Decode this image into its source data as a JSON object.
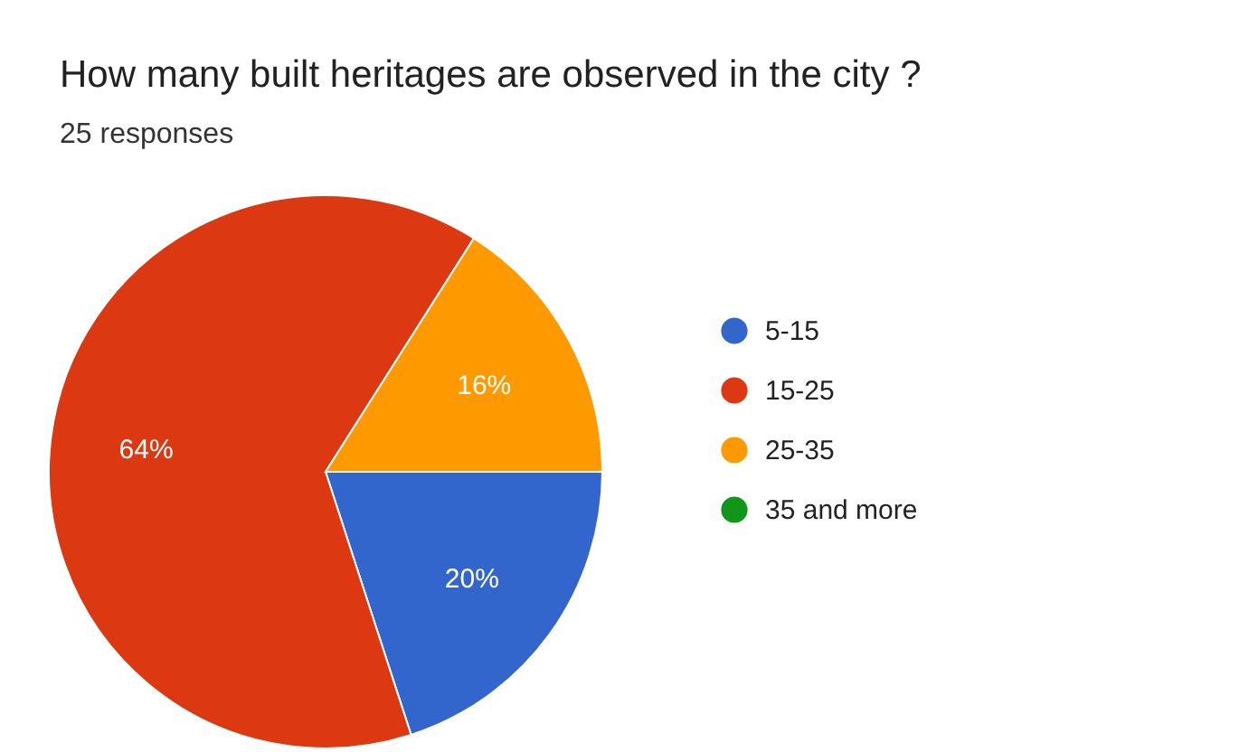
{
  "chart_data": {
    "type": "pie",
    "title": "How many built heritages are observed in the city ?",
    "subtitle": "25 responses",
    "categories": [
      "5-15",
      "15-25",
      "25-35",
      "35 and more"
    ],
    "values": [
      20,
      64,
      16,
      0
    ],
    "colors": [
      "#3366cc",
      "#dc3912",
      "#ff9900",
      "#109618"
    ],
    "value_labels": [
      "20%",
      "64%",
      "16%",
      null
    ],
    "legend": "right"
  }
}
